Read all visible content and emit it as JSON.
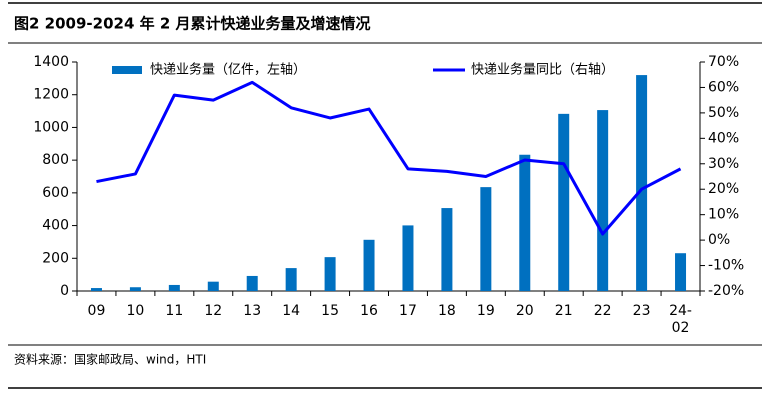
{
  "title": "图2  2009-2024 年 2 月累计快递业务量及增速情况",
  "source": "资料来源：国家邮政局、wind，HTI",
  "chart_data": {
    "type": "bar-line",
    "categories": [
      "09",
      "10",
      "11",
      "12",
      "13",
      "14",
      "15",
      "16",
      "17",
      "18",
      "19",
      "20",
      "21",
      "22",
      "23",
      "24-02"
    ],
    "series": [
      {
        "name": "快递业务量（亿件，左轴）",
        "type": "bar",
        "color": "#0070c0",
        "values": [
          18,
          23,
          37,
          57,
          92,
          140,
          207,
          313,
          401,
          507,
          635,
          833,
          1083,
          1106,
          1320,
          231
        ]
      },
      {
        "name": "快递业务量同比（右轴）",
        "type": "line",
        "color": "#0000ff",
        "axis": "y2",
        "values": [
          23,
          26,
          57,
          55,
          62,
          52,
          48,
          51.5,
          28,
          27,
          25,
          31.5,
          30,
          2.4,
          20,
          28
        ]
      }
    ],
    "ylim": [
      0,
      1400
    ],
    "yticks": [
      0,
      200,
      400,
      600,
      800,
      1000,
      1200,
      1400
    ],
    "y2lim": [
      -20,
      70
    ],
    "y2ticks": [
      {
        "value": -20,
        "label": "-20%"
      },
      {
        "value": -10,
        "label": "-10%"
      },
      {
        "value": 0,
        "label": "0%"
      },
      {
        "value": 10,
        "label": "10%"
      },
      {
        "value": 20,
        "label": "20%"
      },
      {
        "value": 30,
        "label": "30%"
      },
      {
        "value": 40,
        "label": "40%"
      },
      {
        "value": 50,
        "label": "50%"
      },
      {
        "value": 60,
        "label": "60%"
      },
      {
        "value": 70,
        "label": "70%"
      }
    ]
  }
}
